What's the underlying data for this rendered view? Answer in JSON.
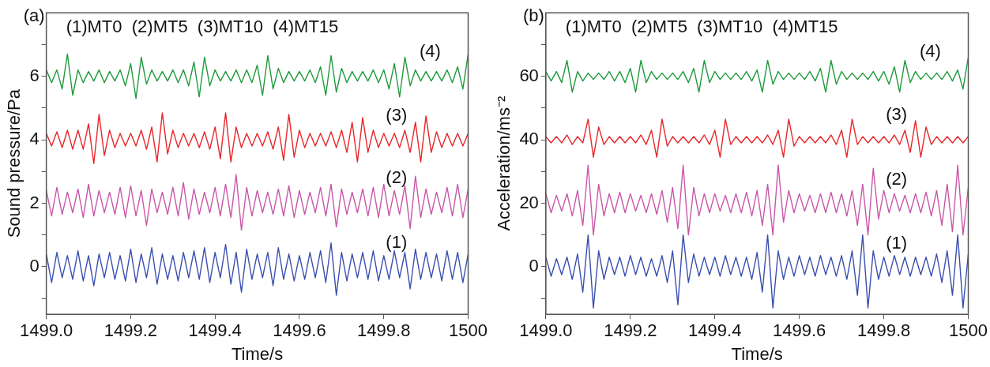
{
  "chart_data": [
    {
      "type": "line",
      "title": "(a)",
      "xlabel": "Time/s",
      "ylabel": "Sound pressure/Pa",
      "annotations": [
        "(1)MT0  (2)MT5  (3)MT10  (4)MT15"
      ],
      "x": [
        1499,
        1499.0125,
        1499.025,
        1499.0375,
        1499.05,
        1499.0625,
        1499.075,
        1499.0875,
        1499.1,
        1499.1125,
        1499.125,
        1499.1375,
        1499.15,
        1499.1625,
        1499.175,
        1499.1875,
        1499.2,
        1499.2125,
        1499.225,
        1499.2375,
        1499.25,
        1499.2625,
        1499.275,
        1499.2875,
        1499.3,
        1499.3125,
        1499.325,
        1499.3375,
        1499.35,
        1499.3625,
        1499.375,
        1499.3875,
        1499.4,
        1499.4125,
        1499.425,
        1499.4375,
        1499.45,
        1499.4625,
        1499.475,
        1499.4875,
        1499.5,
        1499.5125,
        1499.525,
        1499.5375,
        1499.55,
        1499.5625,
        1499.575,
        1499.5875,
        1499.6,
        1499.6125,
        1499.625,
        1499.6375,
        1499.65,
        1499.6625,
        1499.675,
        1499.6875,
        1499.7,
        1499.7125,
        1499.725,
        1499.7375,
        1499.75,
        1499.7625,
        1499.775,
        1499.7875,
        1499.8,
        1499.8125,
        1499.825,
        1499.8375,
        1499.85,
        1499.8625,
        1499.875,
        1499.8875,
        1499.9,
        1499.9125,
        1499.925,
        1499.9375,
        1499.95,
        1499.9625,
        1499.975,
        1499.9875,
        1500
      ],
      "series": [
        {
          "name": "(1)",
          "color": "#3a4fb0",
          "values": [
            0.4,
            -0.5,
            0.45,
            -0.35,
            0.35,
            -0.4,
            0.5,
            -0.45,
            0.35,
            -0.6,
            0.4,
            -0.35,
            0.45,
            -0.4,
            0.35,
            -0.45,
            0.55,
            -0.5,
            0.4,
            -0.35,
            0.6,
            -0.55,
            0.4,
            -0.4,
            0.35,
            -0.45,
            0.45,
            -0.35,
            0.5,
            -0.4,
            0.6,
            -0.5,
            0.45,
            -0.35,
            0.7,
            -0.55,
            0.45,
            -0.8,
            0.55,
            -0.4,
            0.4,
            -0.35,
            0.45,
            -0.6,
            0.6,
            -0.4,
            0.4,
            -0.45,
            0.35,
            -0.4,
            0.45,
            -0.35,
            0.5,
            -0.5,
            0.75,
            -0.9,
            0.45,
            -0.45,
            0.4,
            -0.35,
            0.45,
            -0.4,
            0.5,
            -0.45,
            0.35,
            -0.4,
            0.5,
            -0.35,
            0.45,
            -0.7,
            0.55,
            -0.4,
            0.45,
            -0.35,
            0.4,
            -0.45,
            0.5,
            -0.4,
            0.45,
            -0.5,
            0.4
          ]
        },
        {
          "name": "(2)",
          "color": "#c957a8",
          "values": [
            2.4,
            1.6,
            2.5,
            1.65,
            2.35,
            1.7,
            2.45,
            1.55,
            2.6,
            1.6,
            2.4,
            1.7,
            2.35,
            1.65,
            2.5,
            1.55,
            2.55,
            1.6,
            2.4,
            1.3,
            2.45,
            1.7,
            2.35,
            1.65,
            2.5,
            1.6,
            2.65,
            1.5,
            2.45,
            1.65,
            2.35,
            1.7,
            2.5,
            1.6,
            2.6,
            1.55,
            2.9,
            1.15,
            2.5,
            1.6,
            2.4,
            1.7,
            2.35,
            1.65,
            2.45,
            1.6,
            2.55,
            1.55,
            2.4,
            1.65,
            2.35,
            1.7,
            2.5,
            1.6,
            2.6,
            1.25,
            2.45,
            1.65,
            2.35,
            1.7,
            2.45,
            1.6,
            2.5,
            1.55,
            2.6,
            1.6,
            2.4,
            1.65,
            2.55,
            1.2,
            2.85,
            1.55,
            2.45,
            1.65,
            2.35,
            1.7,
            2.5,
            1.6,
            2.6,
            1.55,
            2.45
          ]
        },
        {
          "name": "(3)",
          "color": "#e8262a",
          "values": [
            4.2,
            3.8,
            4.25,
            3.75,
            4.3,
            3.7,
            4.3,
            3.7,
            4.5,
            3.25,
            4.8,
            3.5,
            4.3,
            3.75,
            4.2,
            3.8,
            4.2,
            3.8,
            4.3,
            3.7,
            4.4,
            3.3,
            4.85,
            3.55,
            4.3,
            3.75,
            4.2,
            3.8,
            4.2,
            3.75,
            4.25,
            3.7,
            4.4,
            3.4,
            4.85,
            3.3,
            4.4,
            3.75,
            4.2,
            3.8,
            4.2,
            3.8,
            4.25,
            3.7,
            4.4,
            3.35,
            4.8,
            3.45,
            4.3,
            3.75,
            4.2,
            3.8,
            4.2,
            3.8,
            4.25,
            3.75,
            4.3,
            3.6,
            4.55,
            3.3,
            4.7,
            3.6,
            4.3,
            3.75,
            4.2,
            3.8,
            4.2,
            3.75,
            4.3,
            3.6,
            4.55,
            3.3,
            4.75,
            3.6,
            4.25,
            3.75,
            4.2,
            3.8,
            4.2,
            3.8,
            4.2
          ]
        },
        {
          "name": "(4)",
          "color": "#1e9a3c",
          "values": [
            6.2,
            5.8,
            6.2,
            5.6,
            6.7,
            5.4,
            6.2,
            5.8,
            6.15,
            5.85,
            6.2,
            5.8,
            6.15,
            5.85,
            6.2,
            5.7,
            6.4,
            5.3,
            6.6,
            5.75,
            6.2,
            5.85,
            6.15,
            5.85,
            6.2,
            5.8,
            6.2,
            5.7,
            6.45,
            5.35,
            6.6,
            5.7,
            6.2,
            5.85,
            6.15,
            5.85,
            6.2,
            5.8,
            6.2,
            5.8,
            6.35,
            5.4,
            6.65,
            5.6,
            6.25,
            5.8,
            6.15,
            5.85,
            6.15,
            5.85,
            6.2,
            5.8,
            6.3,
            5.4,
            6.65,
            5.5,
            6.25,
            5.8,
            6.15,
            5.85,
            6.15,
            5.85,
            6.2,
            5.8,
            6.2,
            5.6,
            6.4,
            5.35,
            6.6,
            5.7,
            6.2,
            5.85,
            6.15,
            5.85,
            6.15,
            5.85,
            6.2,
            5.8,
            6.3,
            5.6,
            6.7
          ]
        }
      ],
      "xlim": [
        1499,
        1500
      ],
      "xticks": [
        {
          "value": 1499,
          "label": "1499.0"
        },
        1499.2,
        1499.4,
        1499.6,
        1499.8,
        1500
      ],
      "ylim": [
        -1.5,
        8
      ],
      "yticks": [
        {
          "value": -1,
          "label": null
        },
        0,
        {
          "value": 1,
          "label": null
        },
        2,
        {
          "value": 3,
          "label": null
        },
        4,
        {
          "value": 5,
          "label": null
        },
        6,
        {
          "value": 7,
          "label": null
        }
      ],
      "grid": false,
      "legend": false,
      "marker": "none",
      "line_style": "solid"
    },
    {
      "type": "line",
      "title": "(b)",
      "xlabel": "Time/s",
      "ylabel": "Acceleration/ms⁻²",
      "annotations": [
        "(1)MT0  (2)MT5  (3)MT10  (4)MT15"
      ],
      "x": [
        1499,
        1499.0125,
        1499.025,
        1499.0375,
        1499.05,
        1499.0625,
        1499.075,
        1499.0875,
        1499.1,
        1499.1125,
        1499.125,
        1499.1375,
        1499.15,
        1499.1625,
        1499.175,
        1499.1875,
        1499.2,
        1499.2125,
        1499.225,
        1499.2375,
        1499.25,
        1499.2625,
        1499.275,
        1499.2875,
        1499.3,
        1499.3125,
        1499.325,
        1499.3375,
        1499.35,
        1499.3625,
        1499.375,
        1499.3875,
        1499.4,
        1499.4125,
        1499.425,
        1499.4375,
        1499.45,
        1499.4625,
        1499.475,
        1499.4875,
        1499.5,
        1499.5125,
        1499.525,
        1499.5375,
        1499.55,
        1499.5625,
        1499.575,
        1499.5875,
        1499.6,
        1499.6125,
        1499.625,
        1499.6375,
        1499.65,
        1499.6625,
        1499.675,
        1499.6875,
        1499.7,
        1499.7125,
        1499.725,
        1499.7375,
        1499.75,
        1499.7625,
        1499.775,
        1499.7875,
        1499.8,
        1499.8125,
        1499.825,
        1499.8375,
        1499.85,
        1499.8625,
        1499.875,
        1499.8875,
        1499.9,
        1499.9125,
        1499.925,
        1499.9375,
        1499.95,
        1499.9625,
        1499.975,
        1499.9875,
        1500
      ],
      "series": [
        {
          "name": "(1)",
          "color": "#3a4fb0",
          "values": [
            3,
            -3,
            2.5,
            -2.5,
            3,
            -4,
            4,
            -8,
            10,
            -13,
            5,
            -4,
            3,
            -2.5,
            3,
            -3,
            3.5,
            -2.5,
            3,
            -3,
            2.5,
            -3,
            3.5,
            -5,
            5,
            -12,
            10,
            -5,
            4,
            -3,
            3,
            -2.5,
            3,
            -3,
            3.5,
            -2.5,
            3,
            -3,
            3,
            -4,
            4.5,
            -8,
            10,
            -13,
            5,
            -4,
            3,
            -3,
            3.5,
            -2.5,
            3,
            -3,
            3.5,
            -2.5,
            3,
            -3,
            3.5,
            -4,
            5,
            -9,
            10,
            -13,
            5,
            -4,
            3,
            -3,
            3.5,
            -2.5,
            3,
            -3,
            3,
            -2.5,
            3,
            -3,
            4,
            -5,
            5,
            -9,
            10,
            -13,
            4
          ]
        },
        {
          "name": "(2)",
          "color": "#c957a8",
          "values": [
            23,
            17,
            22.5,
            17.5,
            23,
            16,
            24,
            13,
            32,
            10,
            26,
            16,
            23,
            17,
            23.5,
            17,
            23,
            17.5,
            22.5,
            17,
            23,
            16.5,
            24,
            14,
            25,
            12,
            32,
            10,
            25,
            16,
            23,
            17,
            23,
            17.5,
            22.5,
            17,
            23,
            17,
            23.5,
            16,
            24,
            13,
            26,
            10,
            32,
            14,
            24,
            17,
            23,
            17.5,
            22.5,
            17,
            23,
            17,
            23.5,
            17,
            23,
            16,
            24,
            13,
            26,
            10,
            31,
            15,
            24,
            17,
            23,
            17.5,
            22.5,
            17,
            23,
            17,
            23.5,
            16,
            24,
            13,
            26,
            11,
            32,
            10,
            25
          ]
        },
        {
          "name": "(3)",
          "color": "#e8262a",
          "values": [
            41,
            39,
            41,
            39,
            41.5,
            38.5,
            41,
            39,
            46.5,
            34.5,
            44,
            38.5,
            41,
            39,
            41,
            39,
            41,
            39,
            41.5,
            38.5,
            43,
            34.5,
            46.5,
            38,
            41,
            39,
            41,
            39,
            41,
            39,
            41.5,
            38.5,
            43,
            34.5,
            46.5,
            38.5,
            41,
            39,
            41,
            39,
            41,
            39,
            41.5,
            38.5,
            43,
            34.5,
            46.5,
            38,
            41,
            39,
            41,
            39,
            41,
            39,
            41.5,
            38.5,
            43,
            34.5,
            46.5,
            38.5,
            41,
            39,
            41,
            39,
            41,
            39,
            41.5,
            38.5,
            43,
            36,
            46,
            34.5,
            44,
            38.5,
            41,
            39,
            41,
            39,
            41,
            39,
            41
          ]
        },
        {
          "name": "(4)",
          "color": "#1e9a3c",
          "values": [
            61.5,
            58.5,
            61.5,
            58,
            65,
            55,
            61.5,
            58.5,
            61,
            59,
            61,
            59,
            61.5,
            58.5,
            61.5,
            58,
            62.5,
            55,
            65,
            58,
            61.5,
            59,
            61,
            59,
            61,
            59,
            61.5,
            58,
            62.5,
            55,
            65,
            58,
            61.5,
            59,
            61,
            59,
            61,
            59,
            61.5,
            58.5,
            62,
            55,
            65,
            57.5,
            61.5,
            59,
            61,
            59,
            61,
            59,
            61.5,
            58.5,
            62.5,
            55,
            65,
            57.5,
            61.5,
            59,
            61,
            59,
            61,
            59,
            61.5,
            58.5,
            61.5,
            57.5,
            63,
            55,
            65,
            58,
            61.5,
            59,
            61,
            59,
            61,
            59,
            61.5,
            58.5,
            62,
            56,
            66
          ]
        }
      ],
      "xlim": [
        1499,
        1500
      ],
      "xticks": [
        {
          "value": 1499,
          "label": "1499.0"
        },
        1499.2,
        1499.4,
        1499.6,
        1499.8,
        1500
      ],
      "ylim": [
        -15,
        80
      ],
      "yticks": [
        {
          "value": -10,
          "label": null
        },
        0,
        {
          "value": 10,
          "label": null
        },
        20,
        {
          "value": 30,
          "label": null
        },
        40,
        {
          "value": 50,
          "label": null
        },
        60,
        {
          "value": 70,
          "label": null
        }
      ],
      "grid": false,
      "legend": false,
      "marker": "none",
      "line_style": "solid"
    }
  ]
}
